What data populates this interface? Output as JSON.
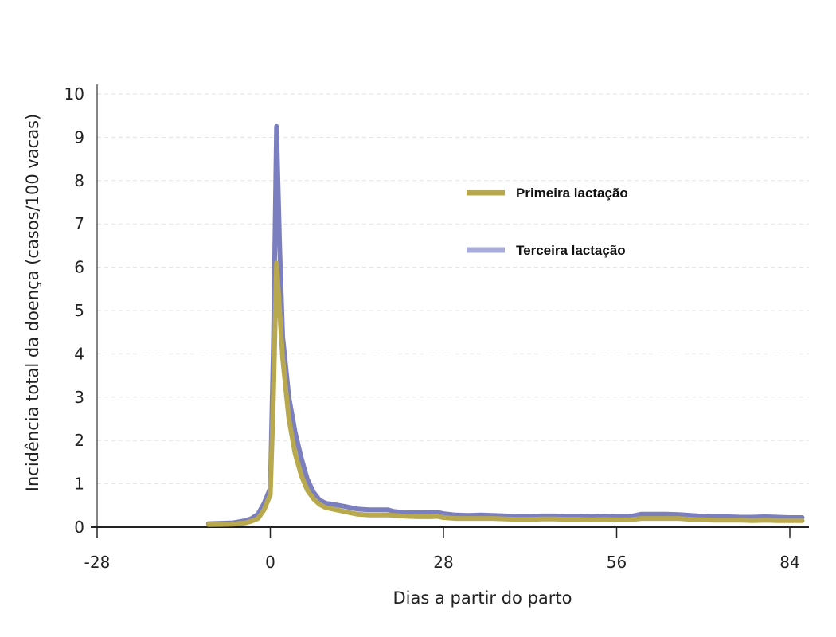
{
  "chart_data": {
    "type": "line",
    "title": "",
    "xlabel": "Dias a partir do parto",
    "ylabel": "Incidência total da doença (casos/100 vacas)",
    "xlim": [
      -28,
      86
    ],
    "ylim": [
      0,
      10
    ],
    "xticks": [
      -28,
      0,
      28,
      56,
      84
    ],
    "yticks": [
      0,
      1,
      2,
      3,
      4,
      5,
      6,
      7,
      8,
      9,
      10
    ],
    "grid": "horizontal-dashed",
    "legend_position": "top-right",
    "series": [
      {
        "name": "Terceira lactação",
        "color": "#7b7fbf",
        "legend_color": "#a9acd8",
        "x": [
          -10,
          -6,
          -4,
          -3,
          -2,
          -1,
          0,
          0.5,
          1,
          1.5,
          2,
          3,
          4,
          5,
          6,
          7,
          8,
          9,
          10,
          12,
          14,
          16,
          18,
          19,
          20,
          22,
          24,
          26,
          27,
          28,
          30,
          32,
          34,
          36,
          38,
          40,
          42,
          44,
          46,
          48,
          50,
          52,
          54,
          56,
          58,
          60,
          62,
          64,
          66,
          68,
          70,
          72,
          74,
          76,
          78,
          80,
          82,
          84,
          86
        ],
        "values": [
          0.08,
          0.1,
          0.15,
          0.2,
          0.3,
          0.55,
          0.9,
          4.2,
          9.25,
          6.5,
          4.4,
          3.0,
          2.2,
          1.6,
          1.1,
          0.8,
          0.62,
          0.55,
          0.53,
          0.48,
          0.42,
          0.4,
          0.4,
          0.4,
          0.36,
          0.33,
          0.33,
          0.34,
          0.34,
          0.31,
          0.28,
          0.27,
          0.28,
          0.27,
          0.26,
          0.25,
          0.25,
          0.26,
          0.26,
          0.25,
          0.25,
          0.24,
          0.25,
          0.24,
          0.24,
          0.3,
          0.3,
          0.3,
          0.29,
          0.27,
          0.25,
          0.24,
          0.24,
          0.23,
          0.23,
          0.24,
          0.23,
          0.22,
          0.22
        ]
      },
      {
        "name": "Primeira lactação",
        "color": "#b8a94e",
        "legend_color": "#b8a94e",
        "x": [
          -10,
          -6,
          -4,
          -3,
          -2,
          -1,
          0,
          0.5,
          1,
          1.5,
          2,
          3,
          4,
          5,
          6,
          7,
          8,
          9,
          10,
          12,
          14,
          16,
          18,
          19,
          20,
          22,
          24,
          26,
          27,
          28,
          30,
          32,
          34,
          36,
          38,
          40,
          42,
          44,
          46,
          48,
          50,
          52,
          54,
          56,
          58,
          60,
          62,
          64,
          66,
          68,
          70,
          72,
          74,
          76,
          78,
          80,
          82,
          84,
          86
        ],
        "values": [
          0.06,
          0.07,
          0.1,
          0.14,
          0.2,
          0.4,
          0.75,
          3.0,
          6.1,
          5.0,
          3.9,
          2.5,
          1.7,
          1.2,
          0.85,
          0.65,
          0.52,
          0.45,
          0.42,
          0.36,
          0.3,
          0.28,
          0.28,
          0.28,
          0.27,
          0.25,
          0.24,
          0.24,
          0.25,
          0.22,
          0.2,
          0.2,
          0.2,
          0.2,
          0.19,
          0.18,
          0.18,
          0.19,
          0.19,
          0.18,
          0.18,
          0.17,
          0.18,
          0.17,
          0.17,
          0.2,
          0.2,
          0.2,
          0.2,
          0.18,
          0.17,
          0.16,
          0.16,
          0.16,
          0.15,
          0.16,
          0.15,
          0.15,
          0.15
        ]
      }
    ],
    "legend": [
      {
        "label": "Primeira lactação",
        "color": "#b8a94e"
      },
      {
        "label": "Terceira lactação",
        "color": "#a9acd8"
      }
    ]
  }
}
